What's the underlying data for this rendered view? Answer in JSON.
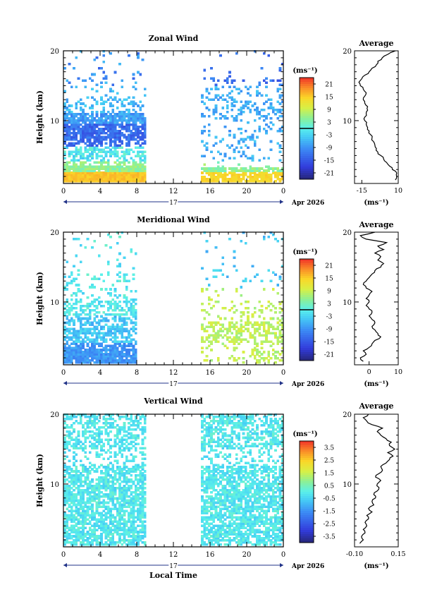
{
  "chart_data": [
    {
      "type": "heatmap",
      "title": "Zonal Wind",
      "ylabel": "Height (km)",
      "yticks": [
        "10",
        "20"
      ],
      "ylim": [
        1,
        20
      ],
      "xticks": [
        "0",
        "4",
        "8",
        "12",
        "16",
        "20",
        "0"
      ],
      "xlim": [
        0,
        24
      ],
      "day_label": "17",
      "date_label": "Apr 2026",
      "colorbar": {
        "unit_label": "(ms⁻¹)",
        "tick_labels": [
          "21",
          "15",
          "9",
          "3",
          "-3",
          "-9",
          "-15",
          "-21"
        ],
        "range": [
          -24,
          24
        ],
        "marker_value": 0
      },
      "data_gap_hours": [
        9,
        15
      ],
      "average_profile": {
        "title": "Average",
        "xticks": [
          "-15",
          "10"
        ],
        "xlim": [
          -20,
          10
        ],
        "unit_label": "(ms⁻¹)",
        "yticks": [
          "10",
          "20"
        ],
        "points": [
          [
            8,
            1.5
          ],
          [
            9,
            2.0
          ],
          [
            9,
            2.5
          ],
          [
            6,
            3.0
          ],
          [
            4,
            3.5
          ],
          [
            2,
            4.0
          ],
          [
            0,
            4.5
          ],
          [
            -2,
            5.0
          ],
          [
            -4,
            5.5
          ],
          [
            -5,
            6.0
          ],
          [
            -6,
            6.5
          ],
          [
            -7,
            7.0
          ],
          [
            -8,
            7.5
          ],
          [
            -9,
            8.0
          ],
          [
            -10,
            8.5
          ],
          [
            -11,
            9.0
          ],
          [
            -12,
            9.5
          ],
          [
            -13,
            10.0
          ],
          [
            -13,
            10.5
          ],
          [
            -12,
            11.0
          ],
          [
            -11,
            11.5
          ],
          [
            -11,
            12.0
          ],
          [
            -13,
            12.5
          ],
          [
            -14,
            13.0
          ],
          [
            -13,
            13.5
          ],
          [
            -12,
            14.0
          ],
          [
            -14,
            14.5
          ],
          [
            -16,
            15.0
          ],
          [
            -17,
            15.5
          ],
          [
            -15,
            16.0
          ],
          [
            -13,
            16.5
          ],
          [
            -10,
            17.0
          ],
          [
            -8,
            17.5
          ],
          [
            -5,
            18.0
          ],
          [
            -4,
            18.5
          ],
          [
            -1,
            19.0
          ],
          [
            3,
            19.5
          ],
          [
            8,
            20.0
          ]
        ]
      }
    },
    {
      "type": "heatmap",
      "title": "Meridional Wind",
      "ylabel": "Height (km)",
      "yticks": [
        "10",
        "20"
      ],
      "ylim": [
        1,
        20
      ],
      "xticks": [
        "0",
        "4",
        "8",
        "12",
        "16",
        "20",
        "0"
      ],
      "xlim": [
        0,
        24
      ],
      "day_label": "17",
      "date_label": "Apr 2026",
      "colorbar": {
        "unit_label": "(ms⁻¹)",
        "tick_labels": [
          "21",
          "15",
          "9",
          "3",
          "-3",
          "-9",
          "-15",
          "-21"
        ],
        "range": [
          -24,
          24
        ],
        "marker_value": 0
      },
      "data_gap_hours": [
        8,
        15
      ],
      "average_profile": {
        "title": "Average",
        "xticks": [
          "0",
          "10"
        ],
        "xlim": [
          -5,
          10
        ],
        "unit_label": "(ms⁻¹)",
        "yticks": [
          "10",
          "20"
        ],
        "points": [
          [
            -2,
            1.5
          ],
          [
            -3,
            2.0
          ],
          [
            -1,
            2.5
          ],
          [
            -2,
            3.0
          ],
          [
            0,
            3.5
          ],
          [
            1,
            4.0
          ],
          [
            2,
            4.5
          ],
          [
            4,
            5.0
          ],
          [
            3,
            5.5
          ],
          [
            2,
            6.0
          ],
          [
            1,
            6.5
          ],
          [
            2,
            7.0
          ],
          [
            1,
            7.5
          ],
          [
            0,
            8.0
          ],
          [
            1,
            8.5
          ],
          [
            0,
            9.0
          ],
          [
            -1,
            9.5
          ],
          [
            0,
            10.0
          ],
          [
            -1,
            10.5
          ],
          [
            0,
            11.0
          ],
          [
            1,
            11.5
          ],
          [
            -1,
            12.0
          ],
          [
            -2,
            12.5
          ],
          [
            -1,
            13.0
          ],
          [
            0,
            13.5
          ],
          [
            1,
            14.0
          ],
          [
            2,
            14.5
          ],
          [
            4,
            15.0
          ],
          [
            5,
            15.5
          ],
          [
            3,
            16.0
          ],
          [
            4,
            16.5
          ],
          [
            2,
            17.0
          ],
          [
            5,
            17.5
          ],
          [
            3,
            18.0
          ],
          [
            6,
            18.5
          ],
          [
            -1,
            19.0
          ],
          [
            -3,
            19.5
          ],
          [
            2,
            20.0
          ]
        ]
      }
    },
    {
      "type": "heatmap",
      "title": "Vertical Wind",
      "ylabel": "Height (km)",
      "xlabel": "Local Time",
      "yticks": [
        "10",
        "20"
      ],
      "ylim": [
        1,
        20
      ],
      "xticks": [
        "0",
        "4",
        "8",
        "12",
        "16",
        "20",
        "0"
      ],
      "xlim": [
        0,
        24
      ],
      "day_label": "17",
      "date_label": "Apr 2026",
      "colorbar": {
        "unit_label": "(ms⁻¹)",
        "tick_labels": [
          "3.5",
          "2.5",
          "1.5",
          "0.5",
          "-0.5",
          "-1.5",
          "-2.5",
          "-3.5"
        ],
        "range": [
          -4,
          4
        ]
      },
      "data_gap_hours": [
        9,
        15
      ],
      "average_profile": {
        "title": "Average",
        "xticks": [
          "-0.10",
          "0.15"
        ],
        "xlim": [
          -0.1,
          0.15
        ],
        "unit_label": "(ms⁻¹)",
        "yticks": [
          "10",
          "20"
        ],
        "points": [
          [
            -0.07,
            1.5
          ],
          [
            -0.05,
            2.0
          ],
          [
            -0.06,
            2.5
          ],
          [
            -0.04,
            3.0
          ],
          [
            -0.05,
            3.5
          ],
          [
            -0.03,
            4.0
          ],
          [
            -0.04,
            4.5
          ],
          [
            -0.02,
            5.0
          ],
          [
            -0.03,
            5.5
          ],
          [
            0.0,
            6.0
          ],
          [
            -0.02,
            6.5
          ],
          [
            0.01,
            7.0
          ],
          [
            0.0,
            7.5
          ],
          [
            0.02,
            8.0
          ],
          [
            0.01,
            8.5
          ],
          [
            0.03,
            9.0
          ],
          [
            0.04,
            9.5
          ],
          [
            0.03,
            10.0
          ],
          [
            0.05,
            10.5
          ],
          [
            0.02,
            11.0
          ],
          [
            0.04,
            11.5
          ],
          [
            0.06,
            12.0
          ],
          [
            0.05,
            12.5
          ],
          [
            0.08,
            13.0
          ],
          [
            0.1,
            13.5
          ],
          [
            0.12,
            14.0
          ],
          [
            0.09,
            14.5
          ],
          [
            0.13,
            15.0
          ],
          [
            0.1,
            15.5
          ],
          [
            0.11,
            16.0
          ],
          [
            0.08,
            16.5
          ],
          [
            0.05,
            17.0
          ],
          [
            0.03,
            17.5
          ],
          [
            0.06,
            18.0
          ],
          [
            0.0,
            18.5
          ],
          [
            -0.03,
            19.0
          ],
          [
            -0.05,
            19.5
          ],
          [
            -0.02,
            20.0
          ]
        ]
      }
    }
  ]
}
